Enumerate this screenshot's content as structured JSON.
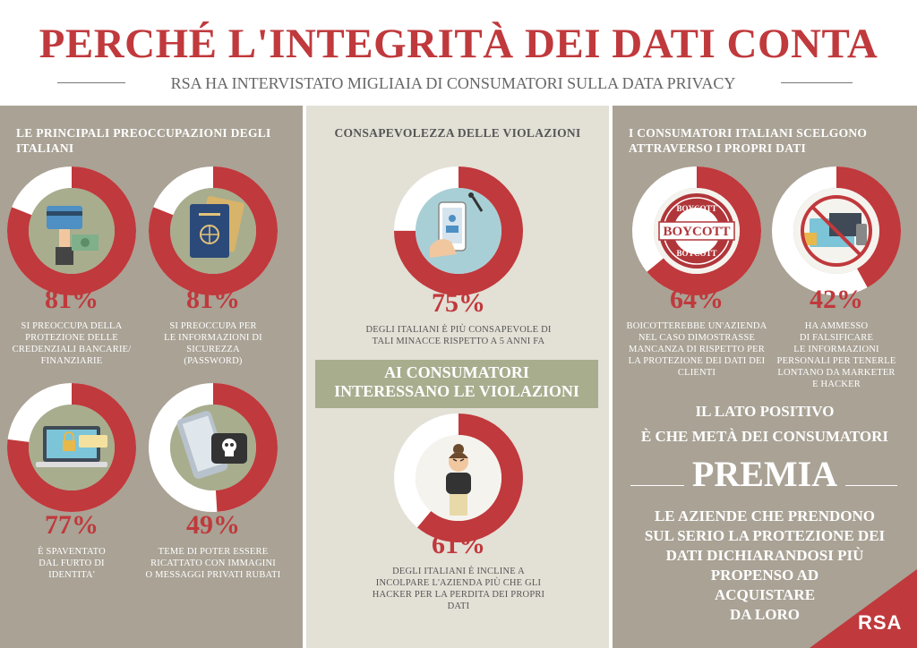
{
  "header": {
    "title": "PERCHÉ L'INTEGRITÀ DEI DATI CONTA",
    "subtitle": "RSA HA INTERVISTATO MIGLIAIA DI CONSUMATORI SULLA DATA PRIVACY"
  },
  "colors": {
    "accent_red": "#c0393c",
    "panel_taupe": "#a9a295",
    "panel_beige": "#e3e0d6",
    "banner_green": "#a8ad8e"
  },
  "left_panel": {
    "heading_line1": "LE PRINCIPALI PREOCCUPAZIONI DEGLI",
    "heading_line2": "ITALIANI",
    "stats": [
      {
        "percent": "81%",
        "value": 0.81,
        "icon": "credit-card-hand-icon",
        "caption": [
          "SI PREOCCUPA DELLA",
          "PROTEZIONE DELLE",
          "CREDENZIALI BANCARIE/",
          "FINANZIARIE"
        ]
      },
      {
        "percent": "81%",
        "value": 0.81,
        "icon": "passport-icon",
        "caption": [
          "SI PREOCCUPA PER",
          "LE INFORMAZIONI DI",
          "SICUREZZA",
          "(PASSWORD)"
        ]
      },
      {
        "percent": "77%",
        "value": 0.77,
        "icon": "laptop-lock-icon",
        "caption": [
          "È SPAVENTATO",
          "DAL FURTO DI",
          "IDENTITA'"
        ]
      },
      {
        "percent": "49%",
        "value": 0.49,
        "icon": "phone-skull-icon",
        "caption": [
          "TEME DI POTER ESSERE",
          "RICATTATO CON IMMAGINI",
          "O MESSAGGI PRIVATI RUBATI"
        ]
      }
    ]
  },
  "mid_panel": {
    "heading": "CONSAPEVOLEZZA DELLE VIOLAZIONI",
    "stat1": {
      "percent": "75%",
      "value": 0.75,
      "icon": "phone-hacker-icon",
      "caption": [
        "DEGLI ITALIANI È PIÙ CONSAPEVOLE DI",
        "TALI MINACCE RISPETTO A 5 ANNI FA"
      ]
    },
    "banner": [
      "AI CONSUMATORI",
      "INTERESSANO LE VIOLAZIONI"
    ],
    "stat2": {
      "percent": "61%",
      "value": 0.61,
      "icon": "angry-woman-icon",
      "caption": [
        "DEGLI ITALIANI È INCLINE A",
        "INCOLPARE L'AZIENDA PIÙ CHE GLI",
        "HACKER PER LA PERDITA DEI PROPRI",
        "DATI"
      ]
    }
  },
  "right_panel": {
    "heading_line1": "I CONSUMATORI ITALIANI SCELGONO",
    "heading_line2": "ATTRAVERSO I PROPRI DATI",
    "stats": [
      {
        "percent": "64%",
        "value": 0.64,
        "icon": "boycott-stamp-icon",
        "stamp_words": [
          "BOYCOTT",
          "BOYCOTT",
          "BOYCOTT"
        ],
        "caption": [
          "BOICOTTEREBBE UN'AZIENDA",
          "NEL CASO DIMOSTRASSE",
          "MANCANZA DI RISPETTO PER",
          "LA PROTEZIONE DEI DATI DEI",
          "CLIENTI"
        ]
      },
      {
        "percent": "42%",
        "value": 0.42,
        "icon": "no-marketing-icon",
        "caption": [
          "HA AMMESSO",
          "DI FALSIFICARE",
          "LE INFORMAZIONI",
          "PERSONALI PER TENERLE",
          "LONTANO DA MARKETER",
          "E HACKER"
        ]
      }
    ],
    "positive": [
      "IL LATO POSITIVO",
      "È  CHE METÀ DEI CONSUMATORI"
    ],
    "premia": "PREMIA",
    "closing": [
      "LE AZIENDE CHE PRENDONO",
      "SUL SERIO LA PROTEZIONE DEI",
      "DATI  DICHIARANDOSI PIÙ",
      "PROPENSO AD",
      "ACQUISTARE",
      "DA LORO"
    ],
    "logo": "RSA"
  }
}
